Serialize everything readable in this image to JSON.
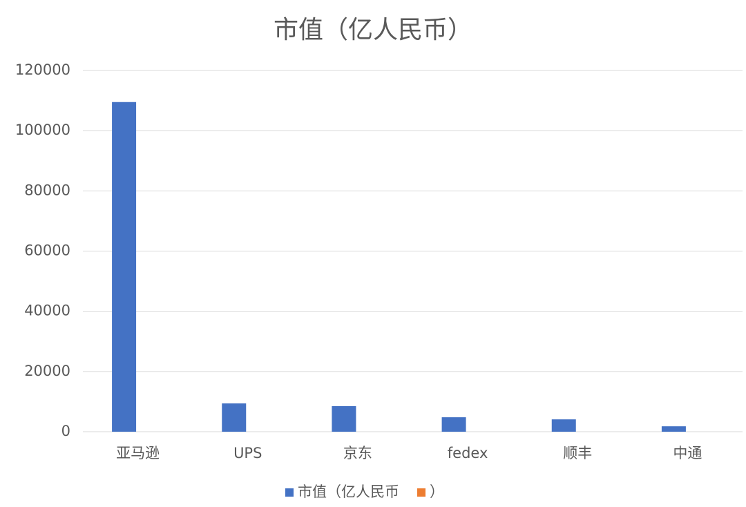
{
  "chart_data": {
    "type": "bar",
    "title": "市值（亿人民币）",
    "categories": [
      "亚马逊",
      "UPS",
      "京东",
      "fedex",
      "顺丰",
      "中通"
    ],
    "series": [
      {
        "name": "市值（亿人民币",
        "color": "#4472c4",
        "values": [
          109500,
          9400,
          8500,
          4800,
          4100,
          1800
        ]
      },
      {
        "name": "）",
        "color": "#ed7d31",
        "values": [
          null,
          null,
          null,
          null,
          null,
          null
        ]
      }
    ],
    "ylim": [
      0,
      120000
    ],
    "yticks": [
      0,
      20000,
      40000,
      60000,
      80000,
      100000,
      120000
    ],
    "grid": true,
    "legend": "bottom"
  }
}
